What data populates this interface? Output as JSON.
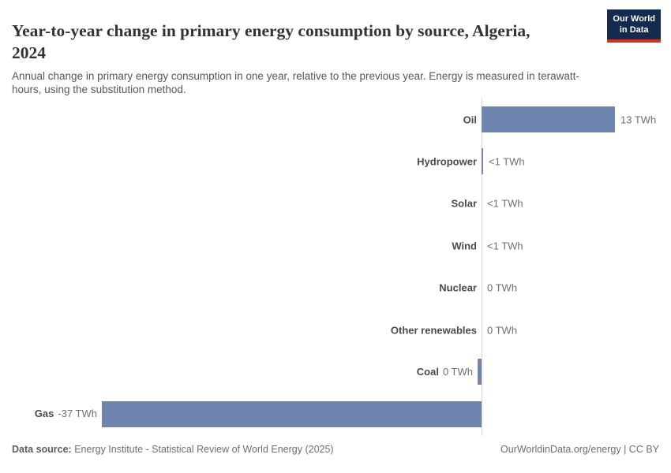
{
  "chart_data": {
    "type": "bar",
    "orientation": "horizontal",
    "title": "Year-to-year change in primary energy consumption by source, Algeria, 2024",
    "subtitle": "Annual change in primary energy consumption in one year, relative to the previous year. Energy is measured in terawatt-hours, using the substitution method.",
    "categories": [
      "Oil",
      "Hydropower",
      "Solar",
      "Wind",
      "Nuclear",
      "Other renewables",
      "Coal",
      "Gas"
    ],
    "values": [
      13,
      0.15,
      0.03,
      0.03,
      0,
      0,
      -0.4,
      -37
    ],
    "value_labels": [
      "13 TWh",
      "<1 TWh",
      "<1 TWh",
      "<1 TWh",
      "0 TWh",
      "0 TWh",
      "0 TWh",
      "-37 TWh"
    ],
    "unit": "TWh",
    "xlim": [
      -47,
      18.5
    ],
    "gridlines": false,
    "zero_line": true,
    "legend": "none",
    "bar_color": "#6e85b0"
  },
  "logo": {
    "line1": "Our World",
    "line2": "in Data",
    "background": "#122b4e",
    "accent": "#d7301f"
  },
  "footer": {
    "datasource_label": "Data source:",
    "datasource_text": " Energy Institute - Statistical Review of World Energy (2025)",
    "credit": "OurWorldinData.org/energy | CC BY"
  },
  "colors": {
    "bar": "#6e85b0",
    "axis_line": "#d8d8d8",
    "category_label": "#4a4a4a",
    "value_label": "#6f6f6f",
    "title": "#333333",
    "subtitle": "#575757"
  }
}
